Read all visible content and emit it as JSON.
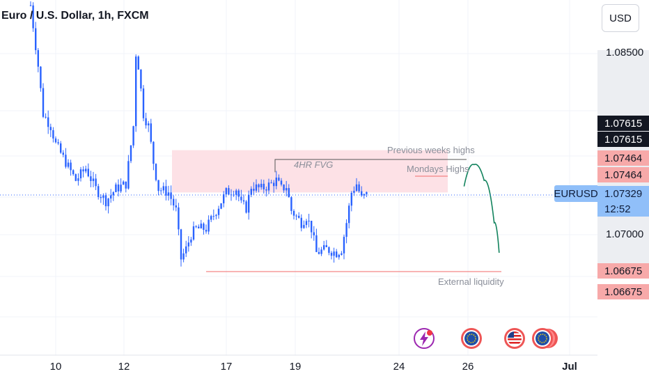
{
  "header": {
    "title": "Euro / U.S. Dollar, 1h, FXCM",
    "currency_button": "USD"
  },
  "price_axis": {
    "labels": [
      "1.08500",
      "1.07000"
    ],
    "tags": [
      {
        "text": "1.07615",
        "bg": "#131722",
        "color": "#ffffff"
      },
      {
        "text": "1.07615",
        "bg": "#131722",
        "color": "#ffffff"
      },
      {
        "text": "1.07464",
        "bg": "#f7a9a9",
        "color": "#131722"
      },
      {
        "text": "1.07464",
        "bg": "#f7a9a9",
        "color": "#131722"
      },
      {
        "text": "1.07329",
        "bg": "#90bff9",
        "color": "#0f1d3a"
      },
      {
        "text": "12:52",
        "bg": "#90bff9",
        "color": "#0f1d3a"
      },
      {
        "text": "1.06675",
        "bg": "#f7a9a9",
        "color": "#131722"
      },
      {
        "text": "1.06675",
        "bg": "#f7a9a9",
        "color": "#131722"
      }
    ],
    "symbol_tag": "EURUSD"
  },
  "time_axis": {
    "labels": [
      "10",
      "12",
      "17",
      "19",
      "24",
      "26",
      "Jul"
    ]
  },
  "annotations": {
    "previous_weeks_highs": "Previous weeks highs",
    "mondays_highs": "Mondays Highs",
    "fvg": "4HR FVG",
    "external_liquidity": "External liquidity"
  },
  "events": [
    "lightning-icon",
    "eu-flag-icon",
    "us-flag-icon",
    "eu-flag-icon"
  ],
  "colors": {
    "candle": "#2962ff",
    "fvg_zone": "#fde1e6",
    "projection": "#12835d",
    "level_line": "#f06a6a"
  },
  "chart_data": {
    "type": "candlestick",
    "symbol": "EURUSD",
    "timeframe": "1h",
    "ylim": [
      1.064,
      1.0895
    ],
    "x_ticks": [
      "10",
      "12",
      "17",
      "19",
      "24",
      "26",
      "Jul"
    ],
    "y_ticks": [
      1.085,
      1.07
    ],
    "last_price": 1.07329,
    "levels": {
      "previous_weeks_highs": 1.07615,
      "mondays_highs": 1.07464,
      "external_liquidity": 1.06675
    },
    "zones": [
      {
        "name": "4HR FVG",
        "from": 1.0735,
        "to": 1.077
      }
    ],
    "close_path": [
      [
        0,
        1.089
      ],
      [
        3,
        1.084
      ],
      [
        5,
        1.08
      ],
      [
        8,
        1.079
      ],
      [
        10,
        1.0775
      ],
      [
        14,
        1.076
      ],
      [
        18,
        1.0745
      ],
      [
        22,
        1.0755
      ],
      [
        26,
        1.0738
      ],
      [
        30,
        1.0728
      ],
      [
        34,
        1.0738
      ],
      [
        38,
        1.0742
      ],
      [
        41,
        1.079
      ],
      [
        42,
        1.085
      ],
      [
        43,
        1.084
      ],
      [
        45,
        1.08
      ],
      [
        47,
        1.079
      ],
      [
        49,
        1.076
      ],
      [
        51,
        1.0738
      ],
      [
        55,
        1.0735
      ],
      [
        58,
        1.072
      ],
      [
        60,
        1.068
      ],
      [
        62,
        1.0688
      ],
      [
        64,
        1.07
      ],
      [
        66,
        1.0705
      ],
      [
        70,
        1.0705
      ],
      [
        74,
        1.072
      ],
      [
        78,
        1.0735
      ],
      [
        82,
        1.0738
      ],
      [
        84,
        1.0725
      ],
      [
        86,
        1.0722
      ],
      [
        88,
        1.074
      ],
      [
        92,
        1.0738
      ],
      [
        96,
        1.0742
      ],
      [
        98,
        1.0745
      ],
      [
        100,
        1.0738
      ],
      [
        102,
        1.074
      ],
      [
        104,
        1.072
      ],
      [
        108,
        1.071
      ],
      [
        110,
        1.0715
      ],
      [
        112,
        1.0705
      ],
      [
        114,
        1.0685
      ],
      [
        118,
        1.0688
      ],
      [
        122,
        1.0685
      ],
      [
        124,
        1.0688
      ],
      [
        126,
        1.071
      ],
      [
        128,
        1.0735
      ],
      [
        130,
        1.0742
      ],
      [
        132,
        1.073
      ],
      [
        134,
        1.0733
      ]
    ],
    "projection": [
      [
        134,
        1.074
      ],
      [
        138,
        1.0758
      ],
      [
        142,
        1.0745
      ],
      [
        146,
        1.071
      ],
      [
        148,
        1.0685
      ]
    ]
  }
}
